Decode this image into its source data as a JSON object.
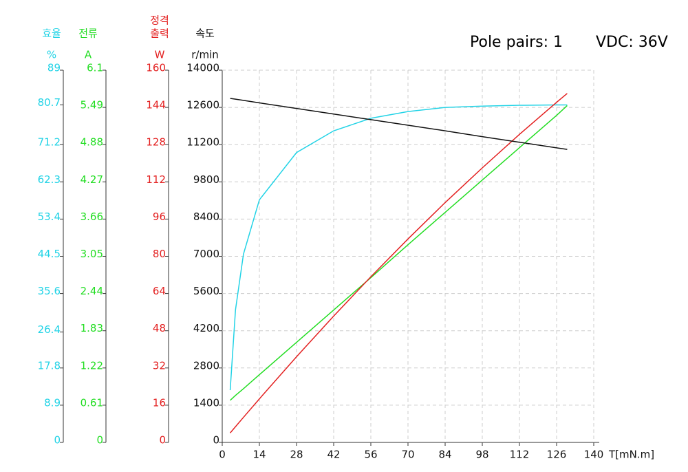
{
  "chart_data": {
    "type": "line",
    "annotations": [
      "Pole pairs: 1",
      "VDC: 36V"
    ],
    "xlabel": "T[mN.m]",
    "xlim": [
      0,
      140
    ],
    "xticks": [
      0,
      14,
      28,
      42,
      56,
      70,
      84,
      98,
      112,
      126,
      140
    ],
    "grid": true,
    "axes": [
      {
        "title": [
          "효율"
        ],
        "unit": "%",
        "color": "#22d3e6",
        "ylim": [
          0,
          89
        ],
        "yticks": [
          0,
          8.9,
          17.8,
          26.4,
          35.6,
          44.5,
          53.4,
          62.3,
          71.2,
          80.7,
          89
        ]
      },
      {
        "title": [
          "전류"
        ],
        "unit": "A",
        "color": "#22dd22",
        "ylim": [
          0,
          6.1
        ],
        "yticks": [
          0,
          0.61,
          1.22,
          1.83,
          2.44,
          3.05,
          3.66,
          4.27,
          4.88,
          5.49,
          6.1
        ]
      },
      {
        "title": [
          "정격",
          "출력"
        ],
        "unit": "W",
        "color": "#e32020",
        "ylim": [
          0,
          160
        ],
        "yticks": [
          0,
          16,
          32,
          48,
          64,
          80,
          96,
          112,
          128,
          144,
          160
        ]
      },
      {
        "title": [
          "속도"
        ],
        "unit": "r/min",
        "color": "#111111",
        "ylim": [
          0,
          14000
        ],
        "yticks": [
          0,
          1400,
          2800,
          4200,
          5600,
          7000,
          8400,
          9800,
          11200,
          12600,
          14000
        ]
      }
    ],
    "x": [
      3,
      5,
      8,
      14,
      28,
      42,
      56,
      70,
      84,
      98,
      112,
      126,
      130
    ],
    "series": [
      {
        "axis": 0,
        "color": "#22d3e6",
        "values": [
          12.5,
          31.7,
          45,
          58,
          69.3,
          74.5,
          77.5,
          79.1,
          80.1,
          80.4,
          80.6,
          80.7,
          80.7
        ]
      },
      {
        "axis": 1,
        "color": "#22dd22",
        "values": [
          0.69,
          0.77,
          0.88,
          1.11,
          1.64,
          2.17,
          2.7,
          3.24,
          3.77,
          4.3,
          4.83,
          5.36,
          5.52
        ]
      },
      {
        "axis": 2,
        "color": "#e32020",
        "values": [
          4.07,
          6.76,
          10.78,
          18.72,
          36.83,
          54.32,
          71.19,
          87.45,
          103.1,
          118.0,
          132.4,
          146.2,
          150.0
        ]
      },
      {
        "axis": 3,
        "color": "#111111",
        "values": [
          12940,
          12910,
          12865,
          12770,
          12560,
          12350,
          12140,
          11930,
          11720,
          11500,
          11290,
          11080,
          11020
        ]
      }
    ]
  }
}
